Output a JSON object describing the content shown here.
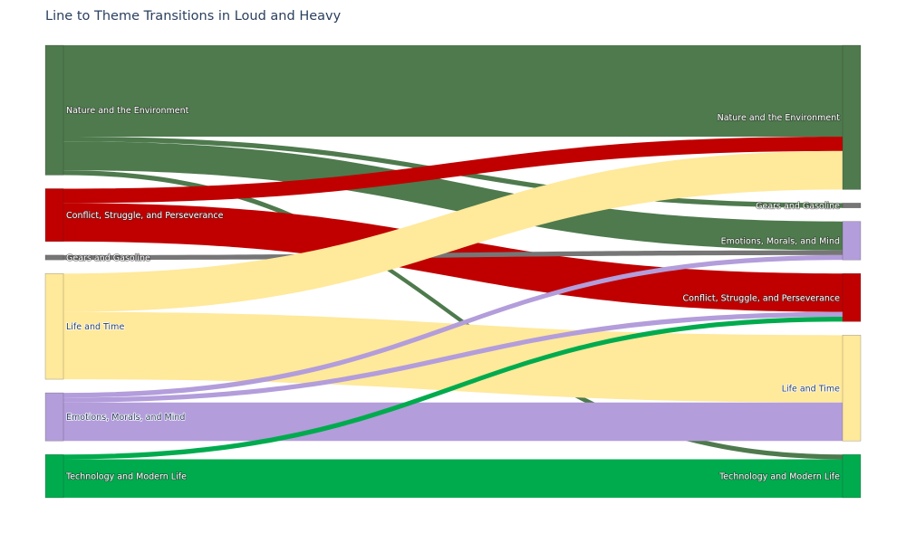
{
  "title": "Line to Theme Transitions in Loud and Heavy",
  "chart_data": {
    "type": "sankey",
    "title": "Line to Theme Transitions in Loud and Heavy",
    "link_opacity": 1.0,
    "source_nodes": [
      {
        "id": "nature",
        "label": "Nature and the Environment",
        "color": "#4e7a4d",
        "label_color": "#ffffff"
      },
      {
        "id": "conflict",
        "label": "Conflict, Struggle, and Perseverance",
        "color": "#c00000",
        "label_color": "#ffffff"
      },
      {
        "id": "gears",
        "label": "Gears and Gasoline",
        "color": "#767676",
        "label_color": "#ffffff"
      },
      {
        "id": "life",
        "label": "Life and Time",
        "color": "#ffe99b",
        "label_color": "#2a3f5f"
      },
      {
        "id": "emotions",
        "label": "Emotions, Morals, and Mind",
        "color": "#b39ddb",
        "label_color": "#2a3f5f"
      },
      {
        "id": "tech",
        "label": "Technology and Modern Life",
        "color": "#00ab4e",
        "label_color": "#ffffff"
      }
    ],
    "target_nodes": [
      {
        "id": "nature",
        "label": "Nature and the Environment",
        "color": "#4e7a4d",
        "label_color": "#ffffff"
      },
      {
        "id": "gears",
        "label": "Gears and Gasoline",
        "color": "#767676",
        "label_color": "#ffffff"
      },
      {
        "id": "emotions",
        "label": "Emotions, Morals, and Mind",
        "color": "#b39ddb",
        "label_color": "#ffffff"
      },
      {
        "id": "conflict",
        "label": "Conflict, Struggle, and Perseverance",
        "color": "#c00000",
        "label_color": "#ffffff"
      },
      {
        "id": "life",
        "label": "Life and Time",
        "color": "#ffe99b",
        "label_color": "#2a3f5f"
      },
      {
        "id": "tech",
        "label": "Technology and Modern Life",
        "color": "#00ab4e",
        "label_color": "#ffffff"
      }
    ],
    "links": [
      {
        "source": "nature",
        "target": "nature",
        "value": 19
      },
      {
        "source": "nature",
        "target": "gears",
        "value": 1
      },
      {
        "source": "nature",
        "target": "emotions",
        "value": 6
      },
      {
        "source": "nature",
        "target": "tech",
        "value": 1
      },
      {
        "source": "conflict",
        "target": "nature",
        "value": 3
      },
      {
        "source": "conflict",
        "target": "conflict",
        "value": 8
      },
      {
        "source": "gears",
        "target": "emotions",
        "value": 1
      },
      {
        "source": "life",
        "target": "nature",
        "value": 8
      },
      {
        "source": "life",
        "target": "life",
        "value": 14
      },
      {
        "source": "emotions",
        "target": "emotions",
        "value": 1
      },
      {
        "source": "emotions",
        "target": "conflict",
        "value": 1
      },
      {
        "source": "emotions",
        "target": "life",
        "value": 8
      },
      {
        "source": "tech",
        "target": "conflict",
        "value": 1
      },
      {
        "source": "tech",
        "target": "tech",
        "value": 8
      }
    ]
  }
}
